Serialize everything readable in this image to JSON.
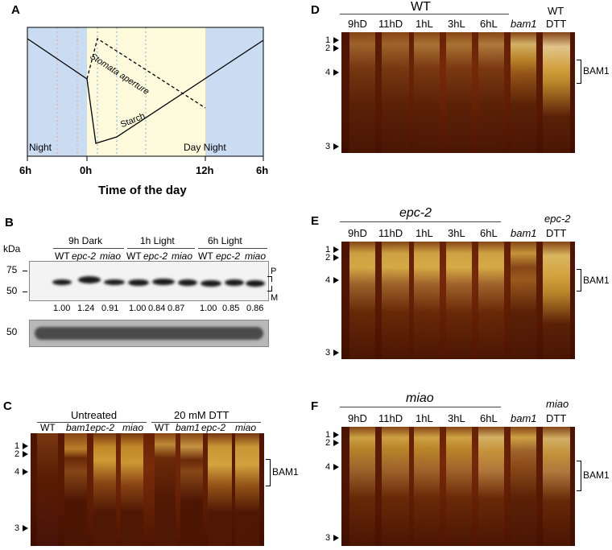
{
  "panel_a": {
    "label": "A",
    "night_left": "Night",
    "day_night": "Day Night",
    "stomata_label": "Stomata aperture",
    "starch_label": "Starch",
    "x_ticks": [
      "6h",
      "0h",
      "12h",
      "6h"
    ],
    "x_title": "Time of the day",
    "colors": {
      "night": "#c9dcf2",
      "day": "#fdfbdc"
    }
  },
  "panel_b": {
    "label": "B",
    "kda": "kDa",
    "groups": [
      "9h Dark",
      "1h Light",
      "6h Light"
    ],
    "lanes": [
      "WT",
      "epc-2",
      "miao",
      "WT",
      "epc-2",
      "miao",
      "WT",
      "epc-2",
      "miao"
    ],
    "markers_top": [
      "75",
      "50"
    ],
    "marker_bottom": "50",
    "values": [
      "1.00",
      "1.24",
      "0.91",
      "1.00",
      "0.84",
      "0.87",
      "1.00",
      "0.85",
      "0.86"
    ],
    "p_label": "P",
    "m_label": "M"
  },
  "panel_c": {
    "label": "C",
    "groups": [
      "Untreated",
      "20 mM DTT"
    ],
    "lanes": [
      "WT",
      "bam1",
      "epc-2",
      "miao",
      "WT",
      "bam1",
      "epc-2",
      "miao"
    ],
    "bam1": "BAM1",
    "markers": [
      "1",
      "2",
      "4",
      "3"
    ]
  },
  "panel_d": {
    "label": "D",
    "title": "WT",
    "lanes": [
      "9hD",
      "11hD",
      "1hL",
      "3hL",
      "6hL"
    ],
    "extra_lane": "bam1",
    "dtt_top": "WT",
    "dtt": "DTT",
    "bam1": "BAM1",
    "markers": [
      "1",
      "2",
      "4",
      "3"
    ]
  },
  "panel_e": {
    "label": "E",
    "title": "epc-2",
    "lanes": [
      "9hD",
      "11hD",
      "1hL",
      "3hL",
      "6hL"
    ],
    "extra_lane": "bam1",
    "dtt_top": "epc-2",
    "dtt": "DTT",
    "bam1": "BAM1",
    "markers": [
      "1",
      "2",
      "4",
      "3"
    ]
  },
  "panel_f": {
    "label": "F",
    "title": "miao",
    "lanes": [
      "9hD",
      "11hD",
      "1hL",
      "3hL",
      "6hL"
    ],
    "extra_lane": "bam1",
    "dtt_top": "miao",
    "dtt": "DTT",
    "bam1": "BAM1",
    "markers": [
      "1",
      "2",
      "4",
      "3"
    ]
  }
}
